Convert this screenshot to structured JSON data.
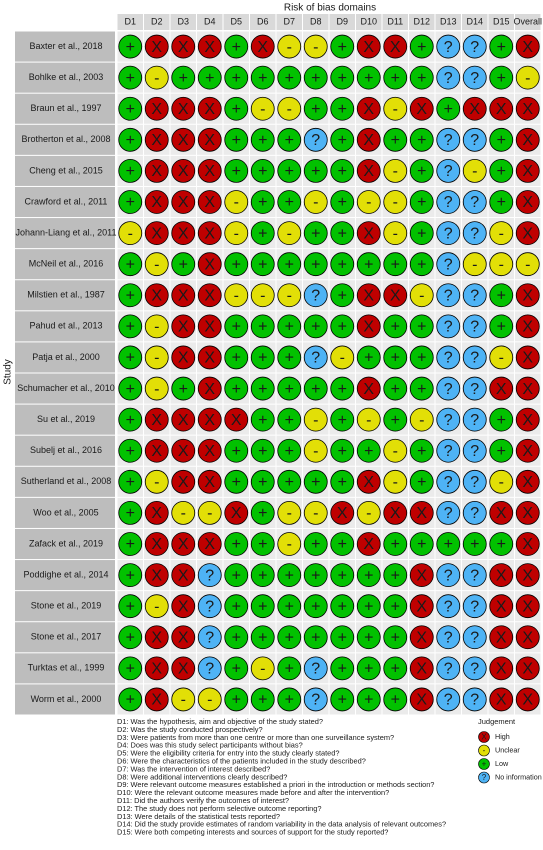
{
  "title": "Risk of bias domains",
  "y_label": "Study",
  "columns": [
    "D1",
    "D2",
    "D3",
    "D4",
    "D5",
    "D6",
    "D7",
    "D8",
    "D9",
    "D10",
    "D11",
    "D12",
    "D13",
    "D14",
    "D15",
    "Overall"
  ],
  "rows": [
    {
      "study": "Baxter et al., 2018",
      "cells": [
        "+",
        "X",
        "X",
        "X",
        "+",
        "X",
        "-",
        "-",
        "+",
        "X",
        "X",
        "+",
        "?",
        "?",
        "+",
        "X"
      ]
    },
    {
      "study": "Bohlke et al., 2003",
      "cells": [
        "+",
        "-",
        "+",
        "+",
        "+",
        "+",
        "+",
        "+",
        "+",
        "+",
        "+",
        "+",
        "?",
        "?",
        "+",
        "-"
      ]
    },
    {
      "study": "Braun et al., 1997",
      "cells": [
        "+",
        "X",
        "X",
        "X",
        "+",
        "-",
        "-",
        "+",
        "+",
        "X",
        "-",
        "X",
        "+",
        "X",
        "X",
        "X"
      ]
    },
    {
      "study": "Brotherton et al., 2008",
      "cells": [
        "+",
        "X",
        "X",
        "X",
        "+",
        "+",
        "+",
        "?",
        "+",
        "X",
        "+",
        "+",
        "?",
        "?",
        "+",
        "X"
      ]
    },
    {
      "study": "Cheng et al., 2015",
      "cells": [
        "+",
        "X",
        "X",
        "X",
        "+",
        "+",
        "+",
        "+",
        "+",
        "X",
        "-",
        "+",
        "?",
        "-",
        "+",
        "X"
      ]
    },
    {
      "study": "Crawford et al., 2011",
      "cells": [
        "+",
        "X",
        "X",
        "X",
        "-",
        "+",
        "+",
        "-",
        "+",
        "-",
        "-",
        "+",
        "?",
        "?",
        "+",
        "X"
      ]
    },
    {
      "study": "Johann-Liang et al., 2011",
      "cells": [
        "-",
        "X",
        "X",
        "X",
        "-",
        "+",
        "-",
        "+",
        "+",
        "X",
        "-",
        "+",
        "?",
        "?",
        "-",
        "X"
      ]
    },
    {
      "study": "McNeil et al., 2016",
      "cells": [
        "+",
        "-",
        "+",
        "X",
        "+",
        "+",
        "+",
        "+",
        "+",
        "+",
        "+",
        "+",
        "?",
        "-",
        "-",
        "-"
      ]
    },
    {
      "study": "Milstien et al., 1987",
      "cells": [
        "+",
        "X",
        "X",
        "X",
        "-",
        "-",
        "-",
        "?",
        "+",
        "X",
        "X",
        "-",
        "?",
        "?",
        "+",
        "X"
      ]
    },
    {
      "study": "Pahud et al., 2013",
      "cells": [
        "+",
        "-",
        "X",
        "X",
        "+",
        "+",
        "+",
        "+",
        "+",
        "X",
        "+",
        "+",
        "?",
        "?",
        "+",
        "X"
      ]
    },
    {
      "study": "Patja et al., 2000",
      "cells": [
        "+",
        "-",
        "X",
        "X",
        "+",
        "+",
        "+",
        "?",
        "-",
        "+",
        "+",
        "+",
        "?",
        "?",
        "-",
        "X"
      ]
    },
    {
      "study": "Schumacher et al., 2010",
      "cells": [
        "+",
        "-",
        "+",
        "X",
        "+",
        "+",
        "+",
        "+",
        "+",
        "X",
        "+",
        "+",
        "?",
        "?",
        "X",
        "X"
      ]
    },
    {
      "study": "Su et al., 2019",
      "cells": [
        "+",
        "X",
        "X",
        "X",
        "X",
        "+",
        "+",
        "-",
        "+",
        "-",
        "+",
        "-",
        "?",
        "?",
        "+",
        "X"
      ]
    },
    {
      "study": "Subelj et al., 2016",
      "cells": [
        "+",
        "X",
        "X",
        "X",
        "+",
        "+",
        "+",
        "-",
        "+",
        "+",
        "-",
        "+",
        "?",
        "?",
        "+",
        "X"
      ]
    },
    {
      "study": "Sutherland et al., 2008",
      "cells": [
        "+",
        "-",
        "X",
        "X",
        "+",
        "+",
        "+",
        "+",
        "+",
        "X",
        "-",
        "+",
        "?",
        "?",
        "-",
        "X"
      ]
    },
    {
      "study": "Woo et al., 2005",
      "cells": [
        "+",
        "X",
        "-",
        "-",
        "X",
        "+",
        "-",
        "-",
        "X",
        "-",
        "X",
        "X",
        "?",
        "?",
        "X",
        "X"
      ]
    },
    {
      "study": "Zafack et al., 2019",
      "cells": [
        "+",
        "X",
        "X",
        "X",
        "+",
        "+",
        "-",
        "+",
        "+",
        "X",
        "+",
        "+",
        "+",
        "+",
        "+",
        "X"
      ]
    },
    {
      "study": "Poddighe et al., 2014",
      "cells": [
        "+",
        "X",
        "X",
        "?",
        "+",
        "+",
        "+",
        "+",
        "+",
        "+",
        "+",
        "X",
        "?",
        "?",
        "X",
        "X"
      ]
    },
    {
      "study": "Stone et al., 2019",
      "cells": [
        "+",
        "-",
        "X",
        "?",
        "+",
        "+",
        "+",
        "+",
        "+",
        "+",
        "+",
        "X",
        "?",
        "?",
        "X",
        "X"
      ]
    },
    {
      "study": "Stone et al., 2017",
      "cells": [
        "+",
        "X",
        "X",
        "?",
        "+",
        "+",
        "+",
        "+",
        "+",
        "+",
        "+",
        "X",
        "?",
        "?",
        "X",
        "X"
      ]
    },
    {
      "study": "Turktas et al., 1999",
      "cells": [
        "+",
        "X",
        "X",
        "?",
        "+",
        "-",
        "+",
        "?",
        "+",
        "+",
        "+",
        "X",
        "?",
        "?",
        "X",
        "X"
      ]
    },
    {
      "study": "Worm et al., 2000",
      "cells": [
        "+",
        "X",
        "-",
        "-",
        "+",
        "+",
        "+",
        "?",
        "+",
        "+",
        "+",
        "X",
        "?",
        "?",
        "X",
        "X"
      ]
    }
  ],
  "legend": {
    "title": "Judgement",
    "items": [
      {
        "symbol": "X",
        "label": "High",
        "color": "#bf0000"
      },
      {
        "symbol": "-",
        "label": "Unclear",
        "color": "#e2df07"
      },
      {
        "symbol": "+",
        "label": "Low",
        "color": "#02c100"
      },
      {
        "symbol": "?",
        "label": "No information",
        "color": "#4eb3f5"
      }
    ]
  },
  "footnotes": [
    "D1: Was the hypothesis, aim and objective of the study stated?",
    "D2: Was the study conducted prospectively?",
    "D3: Were patients from more than one centre or more than one surveillance system?",
    "D4: Does was this study select participants without bias?",
    "D5: Were the eligibility criteria for entry into the study clearly stated?",
    "D6: Were the characteristics of the patients included in the study described?",
    "D7: Was the intervention of interest described?",
    "D8: Were additional interventions clearly described?",
    "D9: Were relevant outcome measures established a priori in the introduction or methods section?",
    "D10: Were the relevant outcome measures made before and after the intervention?",
    "D11: Did the authors verify the outcomes of interest?",
    "D12: The study does not perform selective outcome reporting?",
    "D13: Were details of the statistical tests reported?",
    "D14: Did the study provide estimates of random variability in the data analysis of relevant outcomes?",
    "D15: Were both competing interests and sources of support for the study reported?"
  ]
}
